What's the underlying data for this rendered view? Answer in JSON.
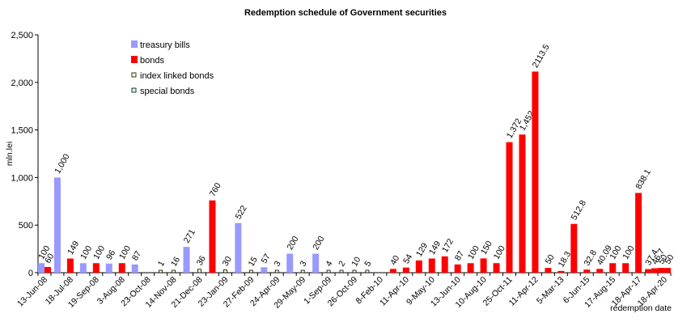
{
  "chart_data": {
    "type": "bar",
    "title": "Redemption schedule of Government securities",
    "xlabel": "redemption date",
    "ylabel": "mln.lei",
    "ylim": [
      0,
      2500
    ],
    "yticks": [
      "0",
      "500",
      "1,000",
      "1,500",
      "2,000",
      "2,500"
    ],
    "ytick_values": [
      0,
      500,
      1000,
      1500,
      2000,
      2500
    ],
    "grid": false,
    "legend_position": "top-left",
    "category_labels": [
      "13-Jun-08",
      "18-Jul-08",
      "19-Sep-08",
      "3-Aug-08",
      "23-Oct-08",
      "14-Nov-08",
      "21-Dec-08",
      "23-Jan-09",
      "27-Feb-09",
      "24-Apr-09",
      "29-May-09",
      "1-Sep-09",
      "26-Oct-09",
      "8-Feb-10",
      "11-Apr-10",
      "9-May-10",
      "13-Jun-10",
      "10-Aug-10",
      "25-Oct-11",
      "11-Apr-12",
      "5-Mar-13",
      "6-Jun-15",
      "17-Aug-15",
      "18-Apr-17",
      "18-Apr-20"
    ],
    "n_slots": 49,
    "series": [
      {
        "name": "treasury bills",
        "color": "#9999ff",
        "kind": "bar"
      },
      {
        "name": "bonds",
        "color": "#ff0000",
        "kind": "bar"
      },
      {
        "name": "index linked bonds",
        "color": "#ffffcc",
        "kind": "small"
      },
      {
        "name": "special bonds",
        "color": "#ccffff",
        "kind": "small"
      }
    ],
    "points": [
      {
        "slot": 0,
        "series": 0,
        "value": 100,
        "label": "100"
      },
      {
        "slot": 0,
        "series": 1,
        "value": 60,
        "label": "60"
      },
      {
        "slot": 1,
        "series": 0,
        "value": 1000,
        "label": "1,000"
      },
      {
        "slot": 2,
        "series": 1,
        "value": 149,
        "label": "149"
      },
      {
        "slot": 3,
        "series": 0,
        "value": 100,
        "label": "100"
      },
      {
        "slot": 4,
        "series": 1,
        "value": 100,
        "label": "100"
      },
      {
        "slot": 5,
        "series": 0,
        "value": 96,
        "label": "96"
      },
      {
        "slot": 6,
        "series": 1,
        "value": 100,
        "label": "100"
      },
      {
        "slot": 7,
        "series": 0,
        "value": 87,
        "label": "87"
      },
      {
        "slot": 9,
        "series": 2,
        "value": 1,
        "label": "1"
      },
      {
        "slot": 10,
        "series": 2,
        "value": 16,
        "label": "16"
      },
      {
        "slot": 11,
        "series": 0,
        "value": 271,
        "label": "271"
      },
      {
        "slot": 12,
        "series": 2,
        "value": 36,
        "label": "36"
      },
      {
        "slot": 13,
        "series": 1,
        "value": 760,
        "label": "760"
      },
      {
        "slot": 14,
        "series": 2,
        "value": 30,
        "label": "30"
      },
      {
        "slot": 15,
        "series": 0,
        "value": 522,
        "label": "522"
      },
      {
        "slot": 16,
        "series": 2,
        "value": 15,
        "label": "15"
      },
      {
        "slot": 17,
        "series": 0,
        "value": 57,
        "label": "57"
      },
      {
        "slot": 18,
        "series": 2,
        "value": 3,
        "label": "3"
      },
      {
        "slot": 19,
        "series": 0,
        "value": 200,
        "label": "200"
      },
      {
        "slot": 20,
        "series": 2,
        "value": 3,
        "label": "3"
      },
      {
        "slot": 21,
        "series": 0,
        "value": 200,
        "label": "200"
      },
      {
        "slot": 22,
        "series": 2,
        "value": 4,
        "label": "4"
      },
      {
        "slot": 23,
        "series": 3,
        "value": 2,
        "label": "2"
      },
      {
        "slot": 24,
        "series": 2,
        "value": 10,
        "label": "10"
      },
      {
        "slot": 25,
        "series": 2,
        "value": 5,
        "label": "5"
      },
      {
        "slot": 27,
        "series": 1,
        "value": 40,
        "label": "40"
      },
      {
        "slot": 28,
        "series": 1,
        "value": 54,
        "label": "54"
      },
      {
        "slot": 29,
        "series": 1,
        "value": 129,
        "label": "129"
      },
      {
        "slot": 30,
        "series": 1,
        "value": 149,
        "label": "149"
      },
      {
        "slot": 31,
        "series": 1,
        "value": 172,
        "label": "172"
      },
      {
        "slot": 32,
        "series": 1,
        "value": 87,
        "label": "87"
      },
      {
        "slot": 33,
        "series": 1,
        "value": 100,
        "label": "100"
      },
      {
        "slot": 34,
        "series": 1,
        "value": 150,
        "label": "150"
      },
      {
        "slot": 35,
        "series": 1,
        "value": 100,
        "label": "100"
      },
      {
        "slot": 36,
        "series": 1,
        "value": 1372,
        "label": "1,372"
      },
      {
        "slot": 37,
        "series": 1,
        "value": 1452,
        "label": "1,452"
      },
      {
        "slot": 38,
        "series": 1,
        "value": 2113.5,
        "label": "2113.5"
      },
      {
        "slot": 39,
        "series": 1,
        "value": 50,
        "label": "50"
      },
      {
        "slot": 40,
        "series": 1,
        "value": 18.3,
        "label": "18.3"
      },
      {
        "slot": 41,
        "series": 1,
        "value": 512.8,
        "label": "512.8"
      },
      {
        "slot": 42,
        "series": 1,
        "value": 32.8,
        "label": "32.8"
      },
      {
        "slot": 43,
        "series": 1,
        "value": 40.09,
        "label": "40.09"
      },
      {
        "slot": 44,
        "series": 1,
        "value": 100,
        "label": "100"
      },
      {
        "slot": 45,
        "series": 1,
        "value": 100,
        "label": "100"
      },
      {
        "slot": 46,
        "series": 1,
        "value": 838.1,
        "label": "838.1"
      },
      {
        "slot": 47,
        "series": 1,
        "value": 37.4,
        "label": "37.4"
      },
      {
        "slot": 47,
        "series": 1,
        "value": 46.7,
        "label": "46.7"
      },
      {
        "slot": 48,
        "series": 1,
        "value": 50,
        "label": "50"
      },
      {
        "slot": 48,
        "series": 1,
        "value": 50,
        "label": "50"
      }
    ]
  }
}
